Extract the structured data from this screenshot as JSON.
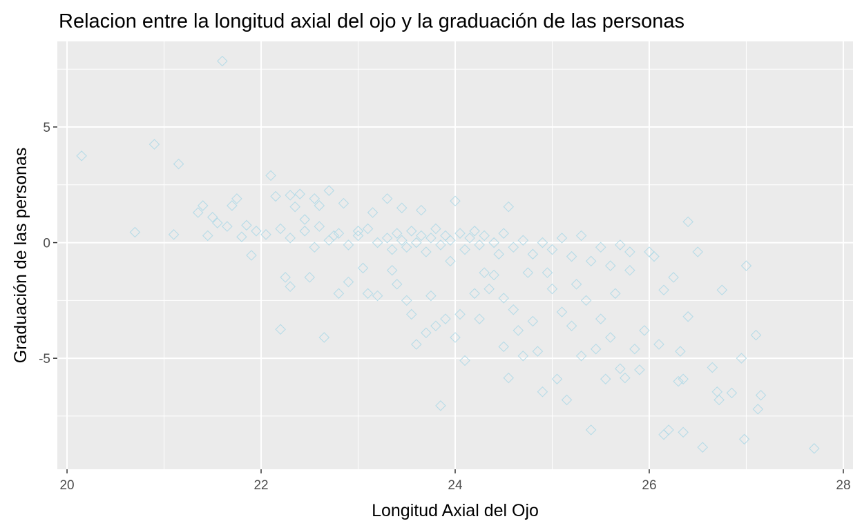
{
  "chart_data": {
    "type": "scatter",
    "title": "Relacion entre la longitud axial del ojo y la graduación de las personas",
    "xlabel": "Longitud Axial del Ojo",
    "ylabel": "Graduación de las personas",
    "xlim": [
      19.9,
      28.1
    ],
    "ylim": [
      -9.8,
      8.7
    ],
    "x_ticks": [
      20,
      22,
      24,
      26,
      28
    ],
    "x_tick_labels": [
      "20",
      "22",
      "24",
      "26",
      "28"
    ],
    "y_ticks": [
      -5,
      0,
      5
    ],
    "y_tick_labels": [
      "-5",
      "0",
      "5"
    ],
    "marker": "open-diamond",
    "point_color": "#add8e6",
    "panel_background": "#ebebeb",
    "grid": true,
    "points": [
      [
        20.15,
        3.75
      ],
      [
        20.9,
        4.25
      ],
      [
        21.15,
        3.4
      ],
      [
        20.7,
        0.45
      ],
      [
        21.1,
        0.35
      ],
      [
        21.6,
        7.85
      ],
      [
        21.4,
        1.6
      ],
      [
        21.35,
        1.3
      ],
      [
        21.5,
        1.1
      ],
      [
        21.45,
        0.3
      ],
      [
        21.55,
        0.85
      ],
      [
        21.7,
        1.6
      ],
      [
        21.75,
        1.9
      ],
      [
        21.65,
        0.7
      ],
      [
        21.8,
        0.25
      ],
      [
        21.85,
        0.75
      ],
      [
        21.9,
        -0.55
      ],
      [
        21.95,
        0.5
      ],
      [
        22.05,
        0.35
      ],
      [
        22.1,
        2.9
      ],
      [
        22.15,
        2.0
      ],
      [
        22.2,
        0.6
      ],
      [
        22.25,
        -1.5
      ],
      [
        22.3,
        2.05
      ],
      [
        22.3,
        -1.9
      ],
      [
        22.35,
        1.55
      ],
      [
        22.4,
        2.1
      ],
      [
        22.45,
        1.0
      ],
      [
        22.5,
        -1.5
      ],
      [
        22.55,
        1.9
      ],
      [
        22.6,
        1.6
      ],
      [
        22.65,
        -4.1
      ],
      [
        22.7,
        2.25
      ],
      [
        22.75,
        0.3
      ],
      [
        22.8,
        -2.2
      ],
      [
        22.85,
        1.7
      ],
      [
        22.9,
        -1.7
      ],
      [
        22.2,
        -3.75
      ],
      [
        23.0,
        0.5
      ],
      [
        23.05,
        -1.1
      ],
      [
        23.1,
        -2.2
      ],
      [
        23.15,
        1.3
      ],
      [
        23.2,
        -2.3
      ],
      [
        23.3,
        1.9
      ],
      [
        23.35,
        -1.2
      ],
      [
        23.4,
        -1.8
      ],
      [
        23.45,
        1.5
      ],
      [
        23.5,
        -2.5
      ],
      [
        23.55,
        -3.1
      ],
      [
        23.6,
        -4.4
      ],
      [
        23.65,
        1.4
      ],
      [
        23.7,
        -3.9
      ],
      [
        23.75,
        -2.3
      ],
      [
        23.8,
        -3.6
      ],
      [
        23.85,
        -7.05
      ],
      [
        23.9,
        -3.3
      ],
      [
        23.95,
        -0.8
      ],
      [
        24.0,
        -4.1
      ],
      [
        24.0,
        1.8
      ],
      [
        24.05,
        -3.1
      ],
      [
        24.1,
        -5.1
      ],
      [
        24.2,
        -2.2
      ],
      [
        24.25,
        -3.3
      ],
      [
        24.3,
        -1.3
      ],
      [
        24.35,
        -2.0
      ],
      [
        24.4,
        -1.4
      ],
      [
        24.45,
        -0.5
      ],
      [
        24.5,
        -4.5
      ],
      [
        24.5,
        -2.4
      ],
      [
        24.55,
        -5.85
      ],
      [
        24.55,
        1.55
      ],
      [
        24.6,
        -2.9
      ],
      [
        24.65,
        -3.8
      ],
      [
        24.7,
        -4.9
      ],
      [
        24.75,
        -1.3
      ],
      [
        24.8,
        -3.4
      ],
      [
        24.85,
        -4.7
      ],
      [
        24.9,
        -6.45
      ],
      [
        24.95,
        -1.3
      ],
      [
        25.0,
        -2.0
      ],
      [
        25.05,
        -5.9
      ],
      [
        25.1,
        -3.0
      ],
      [
        25.15,
        -6.8
      ],
      [
        25.2,
        -3.6
      ],
      [
        25.25,
        -1.8
      ],
      [
        25.3,
        -4.9
      ],
      [
        25.35,
        -2.5
      ],
      [
        25.4,
        -8.1
      ],
      [
        25.45,
        -4.6
      ],
      [
        25.5,
        -3.3
      ],
      [
        25.55,
        -5.9
      ],
      [
        25.6,
        -4.1
      ],
      [
        25.65,
        -2.2
      ],
      [
        25.7,
        -5.45
      ],
      [
        25.75,
        -5.85
      ],
      [
        25.8,
        -1.2
      ],
      [
        25.85,
        -4.6
      ],
      [
        25.9,
        -5.5
      ],
      [
        25.95,
        -3.8
      ],
      [
        26.0,
        -0.4
      ],
      [
        26.05,
        -0.6
      ],
      [
        26.1,
        -4.4
      ],
      [
        26.15,
        -2.05
      ],
      [
        26.15,
        -8.3
      ],
      [
        26.2,
        -8.1
      ],
      [
        26.25,
        -1.5
      ],
      [
        26.3,
        -6.0
      ],
      [
        26.32,
        -4.7
      ],
      [
        26.35,
        -8.2
      ],
      [
        26.35,
        -5.9
      ],
      [
        26.4,
        0.9
      ],
      [
        26.4,
        -3.2
      ],
      [
        26.5,
        -0.4
      ],
      [
        26.55,
        -8.85
      ],
      [
        26.65,
        -5.4
      ],
      [
        26.7,
        -6.45
      ],
      [
        26.72,
        -6.8
      ],
      [
        26.75,
        -2.05
      ],
      [
        26.95,
        -5.0
      ],
      [
        26.98,
        -8.5
      ],
      [
        27.0,
        -1.0
      ],
      [
        27.1,
        -4.0
      ],
      [
        27.12,
        -7.2
      ],
      [
        27.15,
        -6.6
      ],
      [
        27.7,
        -8.9
      ],
      [
        26.85,
        -6.5
      ],
      [
        22.3,
        0.2
      ],
      [
        22.45,
        0.5
      ],
      [
        22.55,
        -0.2
      ],
      [
        22.6,
        0.7
      ],
      [
        22.7,
        0.1
      ],
      [
        22.8,
        0.4
      ],
      [
        22.9,
        -0.1
      ],
      [
        23.0,
        0.3
      ],
      [
        23.1,
        0.6
      ],
      [
        23.2,
        0.0
      ],
      [
        23.3,
        0.2
      ],
      [
        23.35,
        -0.3
      ],
      [
        23.4,
        0.4
      ],
      [
        23.45,
        0.1
      ],
      [
        23.5,
        -0.2
      ],
      [
        23.55,
        0.5
      ],
      [
        23.6,
        0.0
      ],
      [
        23.65,
        0.3
      ],
      [
        23.7,
        -0.4
      ],
      [
        23.75,
        0.2
      ],
      [
        23.8,
        0.6
      ],
      [
        23.85,
        -0.1
      ],
      [
        23.9,
        0.3
      ],
      [
        23.95,
        0.1
      ],
      [
        24.05,
        0.4
      ],
      [
        24.1,
        -0.3
      ],
      [
        24.15,
        0.2
      ],
      [
        24.2,
        0.5
      ],
      [
        24.25,
        -0.1
      ],
      [
        24.3,
        0.3
      ],
      [
        24.4,
        0.0
      ],
      [
        24.5,
        0.4
      ],
      [
        24.6,
        -0.2
      ],
      [
        24.7,
        0.1
      ],
      [
        24.8,
        -0.5
      ],
      [
        24.9,
        0.0
      ],
      [
        25.0,
        -0.3
      ],
      [
        25.1,
        0.2
      ],
      [
        25.2,
        -0.6
      ],
      [
        25.3,
        0.3
      ],
      [
        25.4,
        -0.8
      ],
      [
        25.5,
        -0.2
      ],
      [
        25.6,
        -1.0
      ],
      [
        25.7,
        -0.1
      ],
      [
        25.8,
        -0.4
      ]
    ]
  }
}
